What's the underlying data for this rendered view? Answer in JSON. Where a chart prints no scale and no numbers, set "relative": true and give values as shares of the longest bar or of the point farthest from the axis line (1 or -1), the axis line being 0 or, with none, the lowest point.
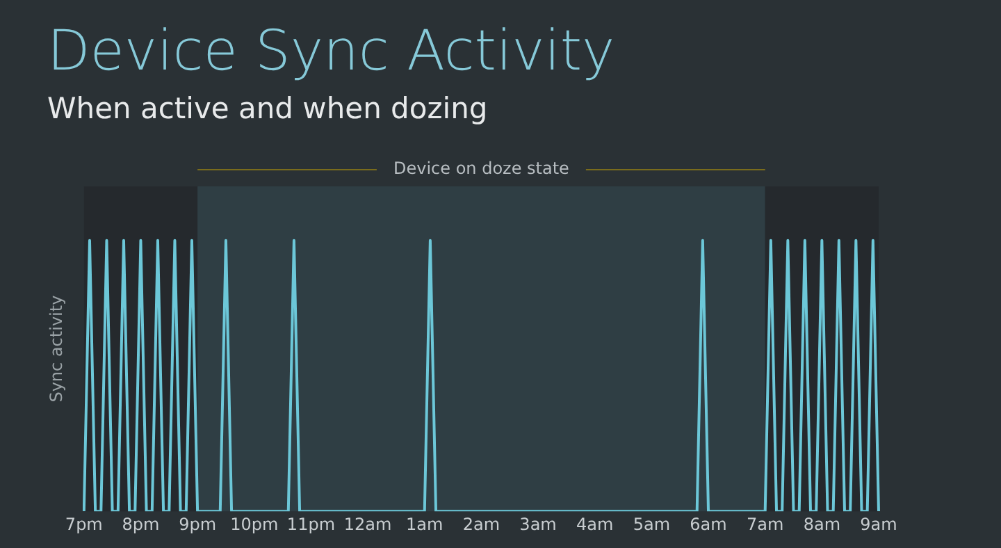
{
  "chart_data": {
    "type": "line",
    "title": "Device Sync Activity",
    "subtitle": "When active and when dozing",
    "ylabel": "Sync activity",
    "relative": true,
    "color": "#6cc7d8",
    "marker": "none",
    "legend": false,
    "grid": false,
    "categories": [
      "7pm",
      null,
      null,
      null,
      null,
      null,
      null,
      null,
      null,
      null,
      "8pm",
      null,
      null,
      null,
      null,
      null,
      null,
      null,
      null,
      null,
      "9pm",
      null,
      null,
      null,
      null,
      null,
      null,
      null,
      null,
      null,
      "10pm",
      null,
      null,
      null,
      null,
      null,
      null,
      null,
      null,
      null,
      "11pm",
      null,
      null,
      null,
      null,
      null,
      null,
      null,
      null,
      null,
      "12am",
      null,
      null,
      null,
      null,
      null,
      null,
      null,
      null,
      null,
      "1am",
      null,
      null,
      null,
      null,
      null,
      null,
      null,
      null,
      null,
      "2am",
      null,
      null,
      null,
      null,
      null,
      null,
      null,
      null,
      null,
      "3am",
      null,
      null,
      null,
      null,
      null,
      null,
      null,
      null,
      null,
      "4am",
      null,
      null,
      null,
      null,
      null,
      null,
      null,
      null,
      null,
      "5am",
      null,
      null,
      null,
      null,
      null,
      null,
      null,
      null,
      null,
      "6am",
      null,
      null,
      null,
      null,
      null,
      null,
      null,
      null,
      null,
      "7am",
      null,
      null,
      null,
      null,
      null,
      null,
      null,
      null,
      null,
      "8am",
      null,
      null,
      null,
      null,
      null,
      null,
      null,
      null,
      null,
      "9am"
    ],
    "values": [
      0,
      1,
      0,
      0,
      1,
      0,
      0,
      1,
      0,
      0,
      1,
      0,
      0,
      1,
      0,
      0,
      1,
      0,
      0,
      1,
      0,
      0,
      0,
      0,
      0,
      1,
      0,
      0,
      0,
      0,
      0,
      0,
      0,
      0,
      0,
      0,
      0,
      1,
      0,
      0,
      0,
      0,
      0,
      0,
      0,
      0,
      0,
      0,
      0,
      0,
      0,
      0,
      0,
      0,
      0,
      0,
      0,
      0,
      0,
      0,
      0,
      1,
      0,
      0,
      0,
      0,
      0,
      0,
      0,
      0,
      0,
      0,
      0,
      0,
      0,
      0,
      0,
      0,
      0,
      0,
      0,
      0,
      0,
      0,
      0,
      0,
      0,
      0,
      0,
      0,
      0,
      0,
      0,
      0,
      0,
      0,
      0,
      0,
      0,
      0,
      0,
      0,
      0,
      0,
      0,
      0,
      0,
      0,
      0,
      1,
      0,
      0,
      0,
      0,
      0,
      0,
      0,
      0,
      0,
      0,
      0,
      1,
      0,
      0,
      1,
      0,
      0,
      1,
      0,
      0,
      1,
      0,
      0,
      1,
      0,
      0,
      1,
      0,
      0,
      1,
      0
    ],
    "bands": [
      {
        "axis": "x",
        "from": "7pm",
        "to": "9pm",
        "color": "#25292d"
      },
      {
        "axis": "x",
        "from": "9pm",
        "to": "7am",
        "label": "Device on doze state",
        "color": "#2f3e44"
      },
      {
        "axis": "x",
        "from": "7am",
        "to": "9am",
        "color": "#25292d"
      }
    ]
  }
}
